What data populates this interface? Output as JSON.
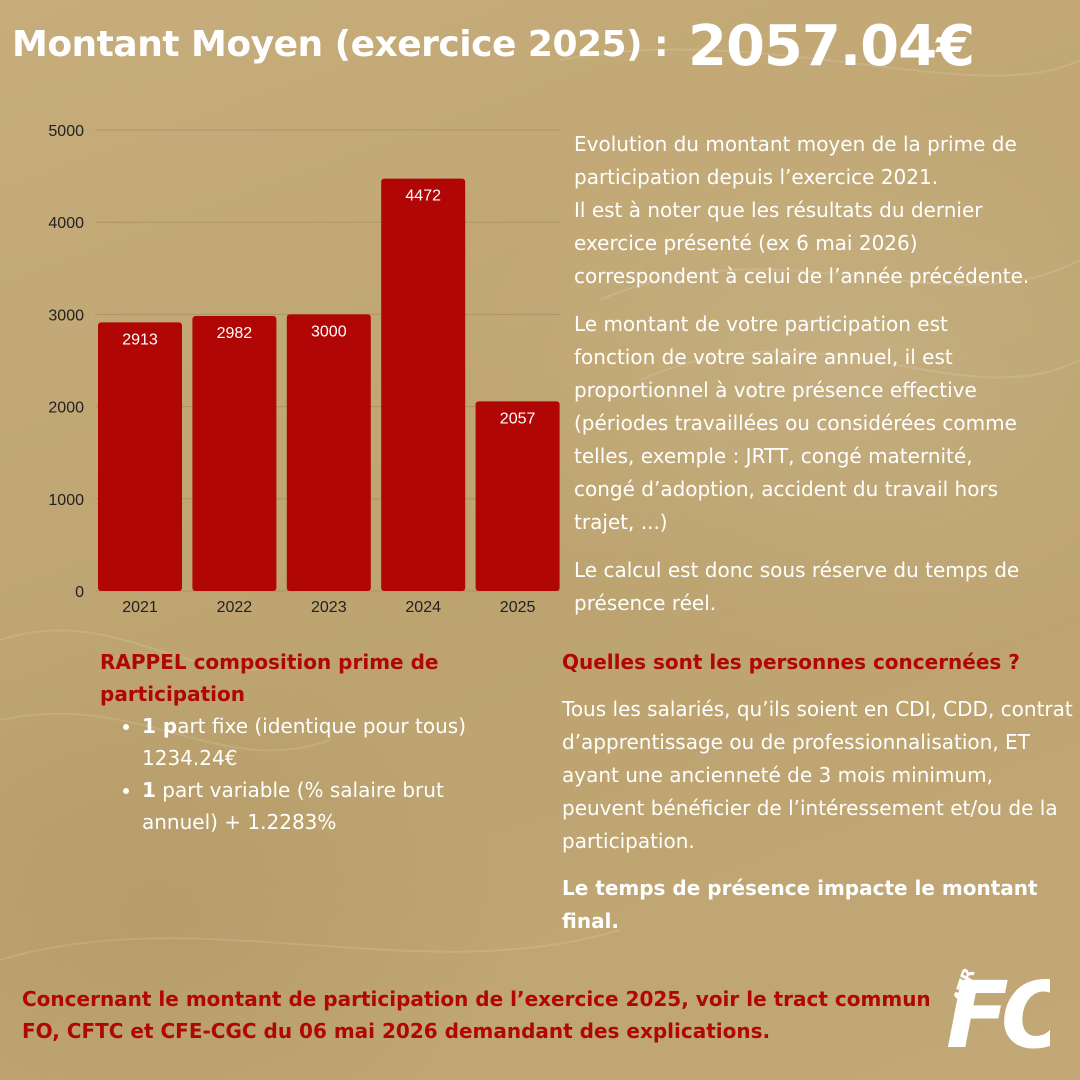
{
  "header": {
    "label": "Montant Moyen (exercice 2025) :",
    "amount": "2057.04€"
  },
  "colors": {
    "background": "#c1a877",
    "bar": "#b00606",
    "accent_text": "#b00606",
    "body_text": "#ffffff",
    "grid": "#9b8761"
  },
  "chart_data": {
    "type": "bar",
    "categories": [
      "2021",
      "2022",
      "2023",
      "2024",
      "2025"
    ],
    "values": [
      2913,
      2982,
      3000,
      4472,
      2057
    ],
    "data_labels": [
      "2913",
      "2982",
      "3000",
      "4472",
      "2057"
    ],
    "yticks": [
      "0",
      "1000",
      "2000",
      "3000",
      "4000",
      "5000"
    ],
    "ylim": [
      0,
      5000
    ],
    "grid": true,
    "title": "",
    "xlabel": "",
    "ylabel": ""
  },
  "description": {
    "lines1": [
      "Evolution du montant moyen de la prime de",
      "participation depuis l’exercice 2021.",
      "Il est à noter que les résultats du dernier",
      "exercice présenté (ex 6 mai 2026)",
      "correspondent à celui de l’année précédente."
    ],
    "lines2": [
      "Le montant de votre participation est",
      "fonction de votre salaire annuel, il est",
      "proportionnel à votre présence effective",
      "(périodes travaillées ou considérées comme",
      "telles, exemple : JRTT, congé maternité,",
      "congé d’adoption, accident du travail hors",
      "trajet, ...)"
    ],
    "lines3": [
      "Le calcul est donc sous réserve du temps de",
      "présence réel."
    ]
  },
  "rappel": {
    "title": "RAPPEL composition prime de participation",
    "items": [
      {
        "bold": "1 p",
        "text": "art fixe (identique pour tous) 1234.24€"
      },
      {
        "bold": "1",
        "text": " part variable (% salaire brut annuel) + 1.2283%"
      }
    ]
  },
  "personnes": {
    "question": "Quelles sont les personnes concernées ?",
    "text": "Tous les salariés, qu’ils soient en CDI, CDD, contrat d’apprentissage ou de professionnalisation, ET ayant une ancienneté de 3 mois minimum, peuvent bénéficier de l’intéressement et/ou de la participation.",
    "bold": "Le temps de présence impacte le montant final."
  },
  "footer": {
    "text": "Concernant le montant de participation de l’exercice 2025, voir le tract commun FO, CFTC et CFE-CGC du 06 mai 2026 demandant des explications."
  },
  "logo": {
    "small": "ATR",
    "big": "FO"
  }
}
